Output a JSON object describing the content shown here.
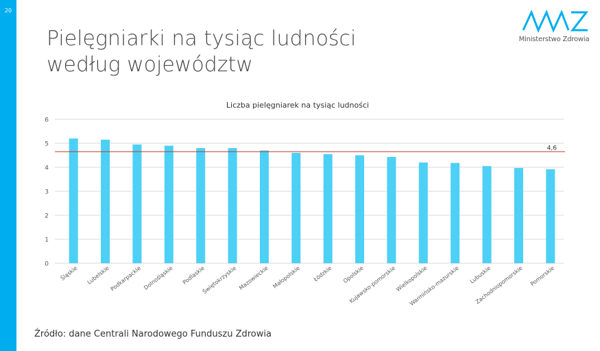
{
  "slide": {
    "number": "20",
    "title_lines": [
      "Pielęgniarki na tysiąc ludności",
      "według województw"
    ],
    "source": "Źródło: dane Centrali Narodowego Funduszu Zdrowia",
    "logo_text": "Ministerstwo Zdrowia"
  },
  "colors": {
    "accent": "#00aeef",
    "bar": "#4dd0f5",
    "average_line": "#c0392b",
    "grid": "#d9d9d9",
    "text": "#595959"
  },
  "chart_data": {
    "type": "bar",
    "title": "Liczba pielęgniarek na tysiąc ludności",
    "categories": [
      "Śląskie",
      "Lubelskie",
      "Podkarpackie",
      "Dolnośląskie",
      "Podlaskie",
      "Świętokrzyskie",
      "Mazowieckie",
      "Małopolskie",
      "Łódzkie",
      "Opolskie",
      "Kujawsko-pomorskie",
      "Wielkopolskie",
      "Warmińsko-mazurskie",
      "Lubuskie",
      "Zachodniopomorskie",
      "Pomorskie"
    ],
    "values": [
      5.2,
      5.15,
      4.95,
      4.9,
      4.8,
      4.8,
      4.7,
      4.6,
      4.55,
      4.5,
      4.43,
      4.2,
      4.18,
      4.05,
      3.97,
      3.92
    ],
    "ylim": [
      0,
      6
    ],
    "yticks": [
      "0",
      "1",
      "2",
      "3",
      "4",
      "5",
      "6"
    ],
    "grid": true,
    "reference_line": {
      "value": 4.65,
      "label": "4,6"
    }
  }
}
